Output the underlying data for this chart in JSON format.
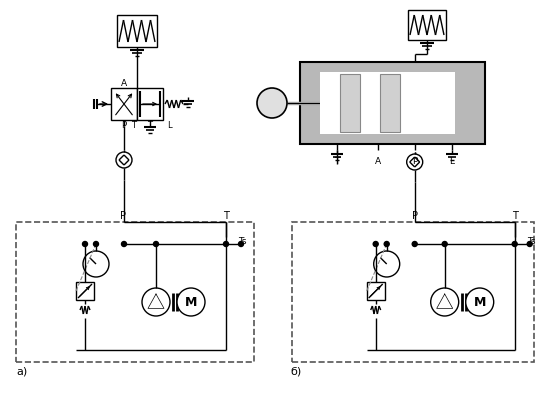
{
  "title": "",
  "bg_color": "#ffffff",
  "line_color": "#000000",
  "gray_fill": "#b8b8b8",
  "light_gray": "#d0d0d0",
  "dash_color": "#555555",
  "label_a": "а)",
  "label_b": "б)",
  "label_M": "M"
}
